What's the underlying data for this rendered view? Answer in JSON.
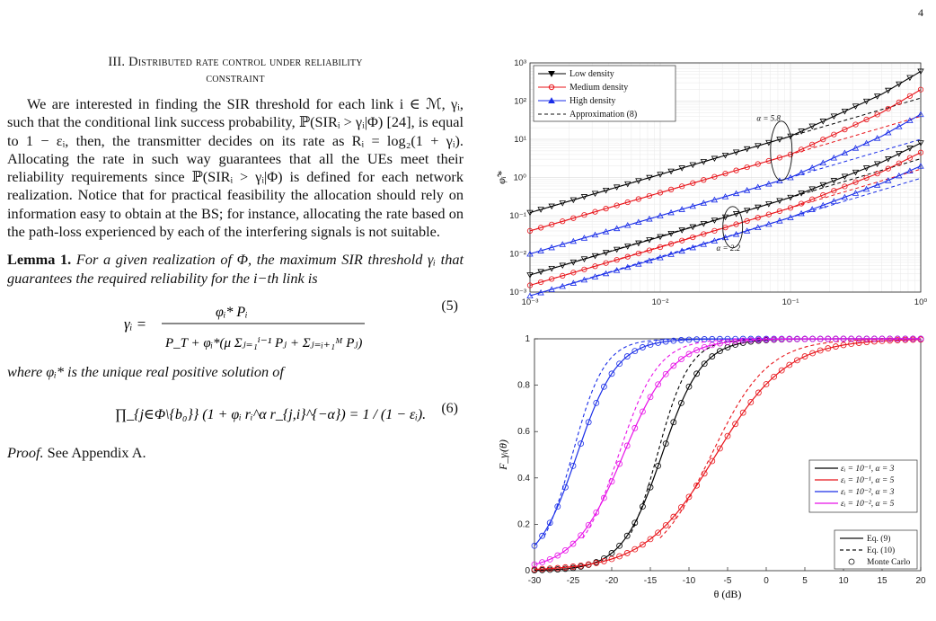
{
  "page_number": "4",
  "section_title_line1": "III. Distributed rate control under reliability",
  "section_title_line2": "constraint",
  "paragraph": "We are interested in finding the SIR threshold for each link i ∈ ℳ, γᵢ, such that the conditional link success probability, ℙ(SIRᵢ > γᵢ|Φ) [24], is equal to 1 − εᵢ, then, the transmitter decides on its rate as Rᵢ = log₂(1 + γᵢ). Allocating the rate in such way guarantees that all the UEs meet their reliability requirements since ℙ(SIRᵢ > γᵢ|Φ) is defined for each network realization. Notice that for practical feasibility the allocation should rely on information easy to obtain at the BS; for instance, allocating the rate based on the path-loss experienced by each of the interfering signals is not suitable.",
  "lemma_label": "Lemma 1.",
  "lemma_text": "For a given realization of Φ, the maximum SIR threshold γᵢ that guarantees the required reliability for the i−th link is",
  "eq5_number": "(5)",
  "eq5_lhs": "γᵢ =",
  "eq5_numerator": "φᵢ* Pᵢ",
  "eq5_denominator": "P_T + φᵢ*(μ Σⱼ₌₁ⁱ⁻¹ Pⱼ + Σⱼ₌ᵢ₊₁ᴹ Pⱼ)",
  "where_text": "where φᵢ* is the unique real positive solution of",
  "eq6_number": "(6)",
  "eq6_text": "∏_{j∈Φ\\{b₀}} (1 + φᵢ rᵢ^α r_{j,i}^{−α}) = 1 / (1 − εᵢ).",
  "proof_label": "Proof.",
  "proof_text": "See Appendix A.",
  "chart_data": [
    {
      "type": "line",
      "xscale": "log",
      "yscale": "log",
      "xlim": [
        0.001,
        1
      ],
      "ylim": [
        0.001,
        1000
      ],
      "xticks": [
        "10⁻³",
        "10⁻²",
        "10⁻¹",
        "10⁰"
      ],
      "yticks": [
        "10⁻³",
        "10⁻²",
        "10⁻¹",
        "10⁰",
        "10¹",
        "10²",
        "10³"
      ],
      "ylabel": "φ̂ᵢ*",
      "legend": [
        "Low density",
        "Medium density",
        "High density",
        "Approximation (8)"
      ],
      "legend_position": "top-left",
      "grid": true,
      "annotations": [
        "α = 5.8",
        "α = 2.2"
      ],
      "colors": {
        "low": "#000000",
        "medium": "#e8141a",
        "high": "#1a2ee8"
      },
      "series": [
        {
          "name": "Low density",
          "alpha": "5.8",
          "x": [
            0.001,
            0.01,
            0.1,
            0.5,
            1
          ],
          "y": [
            0.12,
            1.2,
            12,
            150,
            600
          ]
        },
        {
          "name": "Medium density",
          "alpha": "5.8",
          "x": [
            0.001,
            0.01,
            0.1,
            0.5,
            1
          ],
          "y": [
            0.04,
            0.4,
            4,
            50,
            200
          ]
        },
        {
          "name": "High density",
          "alpha": "5.8",
          "x": [
            0.001,
            0.01,
            0.1,
            0.5,
            1
          ],
          "y": [
            0.01,
            0.1,
            1,
            12,
            45
          ]
        },
        {
          "name": "Low density",
          "alpha": "2.2",
          "x": [
            0.001,
            0.01,
            0.1,
            0.5,
            1
          ],
          "y": [
            0.0028,
            0.028,
            0.3,
            2.5,
            8
          ]
        },
        {
          "name": "Medium density",
          "alpha": "2.2",
          "x": [
            0.001,
            0.01,
            0.1,
            0.5,
            1
          ],
          "y": [
            0.0015,
            0.015,
            0.16,
            1.4,
            4.5
          ]
        },
        {
          "name": "High density",
          "alpha": "2.2",
          "x": [
            0.001,
            0.01,
            0.1,
            0.5,
            1
          ],
          "y": [
            0.0008,
            0.008,
            0.09,
            0.7,
            2
          ]
        }
      ]
    },
    {
      "type": "line",
      "xlim": [
        -30,
        20
      ],
      "ylim": [
        0,
        1
      ],
      "xticks": [
        "-30",
        "-25",
        "-20",
        "-15",
        "-10",
        "-5",
        "0",
        "5",
        "10",
        "15",
        "20"
      ],
      "yticks": [
        "0",
        "0.2",
        "0.4",
        "0.6",
        "0.8",
        "1"
      ],
      "xlabel": "θ (dB)",
      "ylabel": "F_γᵢ(θ)",
      "legend": [
        "εᵢ = 10⁻¹, α = 3",
        "εᵢ = 10⁻¹, α = 5",
        "εᵢ = 10⁻², α = 3",
        "εᵢ = 10⁻², α = 5"
      ],
      "legend2": [
        "Eq. (9)",
        "Eq. (10)",
        "Monte Carlo"
      ],
      "legend_position": "bottom-right",
      "series": [
        {
          "name": "εᵢ = 10⁻¹, α = 3",
          "color": "#000000",
          "mid": -13.5,
          "scale": 2.6
        },
        {
          "name": "εᵢ = 10⁻¹, α = 5",
          "color": "#e8141a",
          "mid": -6.5,
          "scale": 4.6
        },
        {
          "name": "εᵢ = 10⁻², α = 3",
          "color": "#1a2ee8",
          "mid": -24.5,
          "scale": 2.6
        },
        {
          "name": "εᵢ = 10⁻², α = 5",
          "color": "#e812e8",
          "mid": -18.5,
          "scale": 3.2
        }
      ]
    }
  ]
}
